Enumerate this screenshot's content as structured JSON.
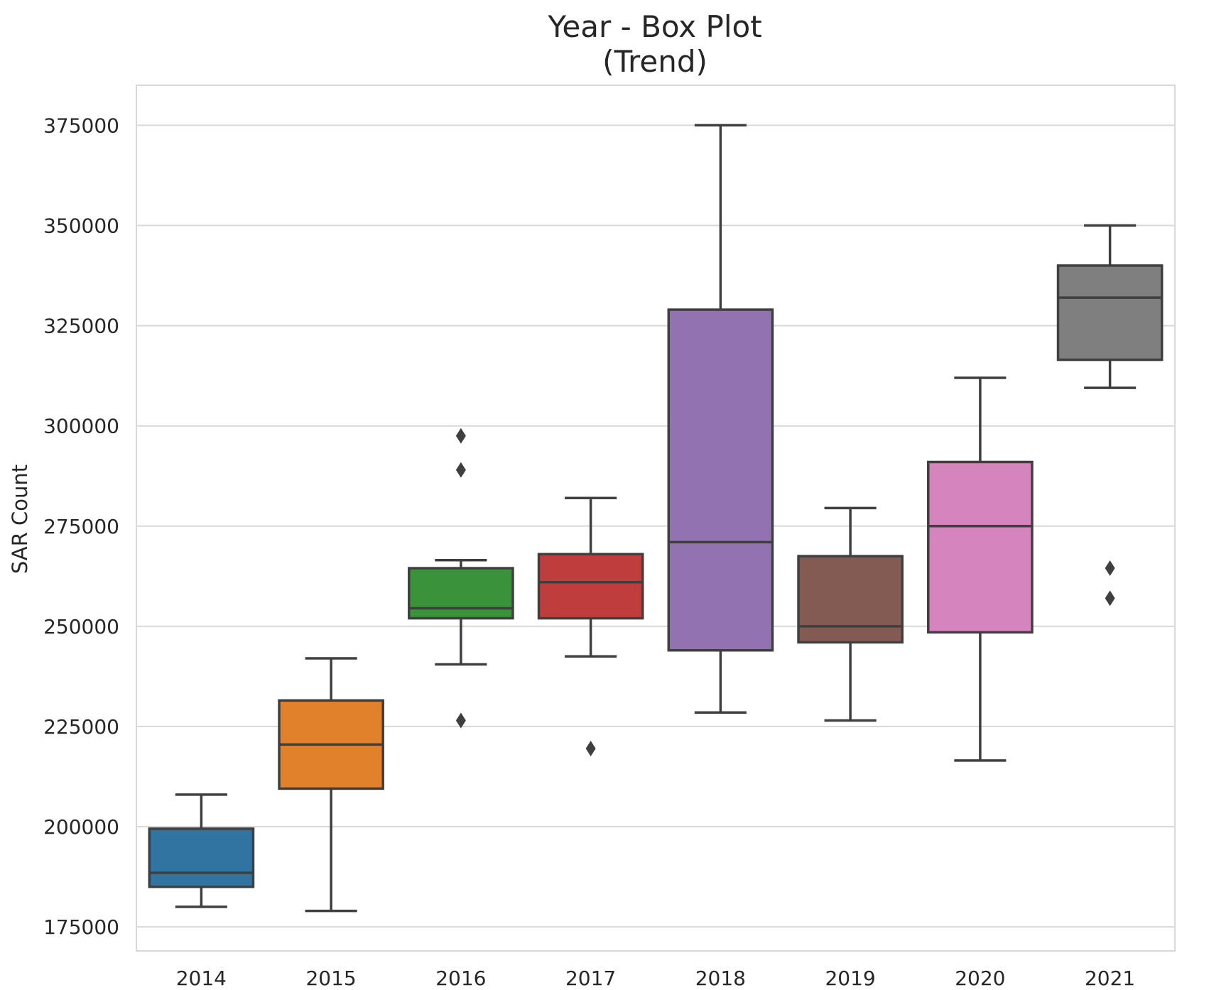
{
  "chart_data": {
    "type": "box",
    "title": "Year - Box Plot",
    "subtitle": "(Trend)",
    "xlabel": "",
    "ylabel": "SAR Count",
    "categories": [
      "2014",
      "2015",
      "2016",
      "2017",
      "2018",
      "2019",
      "2020",
      "2021"
    ],
    "yticks": [
      "175000",
      "200000",
      "225000",
      "250000",
      "275000",
      "300000",
      "325000",
      "350000",
      "375000"
    ],
    "ylim": [
      169000,
      385000
    ],
    "grid": true,
    "legend": "none",
    "boxes": [
      {
        "category": "2014",
        "whisker_low": 180000,
        "q1": 185000,
        "median": 188500,
        "q3": 199500,
        "whisker_high": 208000,
        "outliers": [],
        "color": "#3274a1"
      },
      {
        "category": "2015",
        "whisker_low": 179000,
        "q1": 209500,
        "median": 220500,
        "q3": 231500,
        "whisker_high": 242000,
        "outliers": [],
        "color": "#e1812c"
      },
      {
        "category": "2016",
        "whisker_low": 240500,
        "q1": 252000,
        "median": 254500,
        "q3": 264500,
        "whisker_high": 266500,
        "outliers": [
          297500,
          289000,
          226500
        ],
        "color": "#3a923a"
      },
      {
        "category": "2017",
        "whisker_low": 242500,
        "q1": 252000,
        "median": 261000,
        "q3": 268000,
        "whisker_high": 282000,
        "outliers": [
          219500
        ],
        "color": "#c03d3e"
      },
      {
        "category": "2018",
        "whisker_low": 228500,
        "q1": 244000,
        "median": 271000,
        "q3": 329000,
        "whisker_high": 375000,
        "outliers": [],
        "color": "#9372b2"
      },
      {
        "category": "2019",
        "whisker_low": 226500,
        "q1": 246000,
        "median": 250000,
        "q3": 267500,
        "whisker_high": 279500,
        "outliers": [],
        "color": "#845b53"
      },
      {
        "category": "2020",
        "whisker_low": 216500,
        "q1": 248500,
        "median": 275000,
        "q3": 291000,
        "whisker_high": 312000,
        "outliers": [],
        "color": "#d684bd"
      },
      {
        "category": "2021",
        "whisker_low": 309500,
        "q1": 316500,
        "median": 332000,
        "q3": 340000,
        "whisker_high": 350000,
        "outliers": [
          264500,
          257000
        ],
        "color": "#7f7f7f"
      }
    ],
    "colors": {
      "grid": "#d9d9d9",
      "frame": "#d9d9d9",
      "line": "#3f3f3f"
    }
  }
}
